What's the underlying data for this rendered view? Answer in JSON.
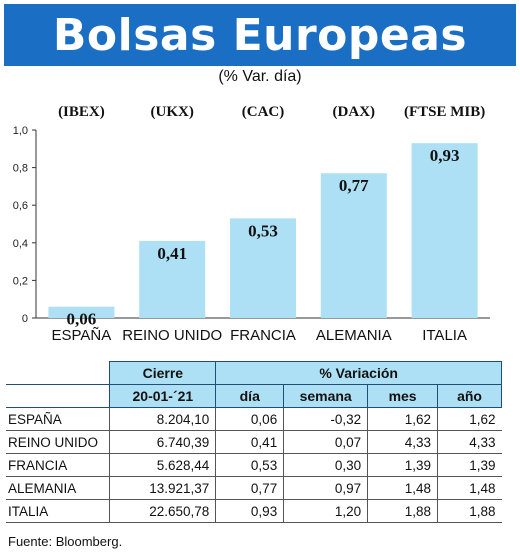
{
  "title": "Bolsas Europeas",
  "subtitle": "(% Var. día)",
  "chart_data": {
    "type": "bar",
    "categories": [
      "ESPAÑA",
      "REINO UNIDO",
      "FRANCIA",
      "ALEMANIA",
      "ITALIA"
    ],
    "index_codes": [
      "(IBEX)",
      "(UKX)",
      "(CAC)",
      "(DAX)",
      "(FTSE MIB)"
    ],
    "values": [
      0.06,
      0.41,
      0.53,
      0.77,
      0.93
    ],
    "value_labels": [
      "0,06",
      "0,41",
      "0,53",
      "0,77",
      "0,93"
    ],
    "ylim": [
      0,
      1.0
    ],
    "yticks": [
      "0",
      "0,2",
      "0,4",
      "0,6",
      "0,8",
      "1,0"
    ],
    "bar_color": "#aee0f5",
    "grid": false,
    "xlabel": "",
    "ylabel": ""
  },
  "table": {
    "header_cierre": "Cierre",
    "header_variacion": "% Variación",
    "date": "20-01-´21",
    "cols": [
      "día",
      "semana",
      "mes",
      "año"
    ],
    "rows": [
      {
        "country": "ESPAÑA",
        "close": "8.204,10",
        "dia": "0,06",
        "semana": "-0,32",
        "mes": "1,62",
        "ano": "1,62"
      },
      {
        "country": "REINO UNIDO",
        "close": "6.740,39",
        "dia": "0,41",
        "semana": "0,07",
        "mes": "4,33",
        "ano": "4,33"
      },
      {
        "country": "FRANCIA",
        "close": "5.628,44",
        "dia": "0,53",
        "semana": "0,30",
        "mes": "1,39",
        "ano": "1,39"
      },
      {
        "country": "ALEMANIA",
        "close": "13.921,37",
        "dia": "0,77",
        "semana": "0,97",
        "mes": "1,48",
        "ano": "1,48"
      },
      {
        "country": "ITALIA",
        "close": "22.650,78",
        "dia": "0,93",
        "semana": "1,20",
        "mes": "1,88",
        "ano": "1,88"
      }
    ]
  },
  "source": "Fuente: Bloomberg."
}
